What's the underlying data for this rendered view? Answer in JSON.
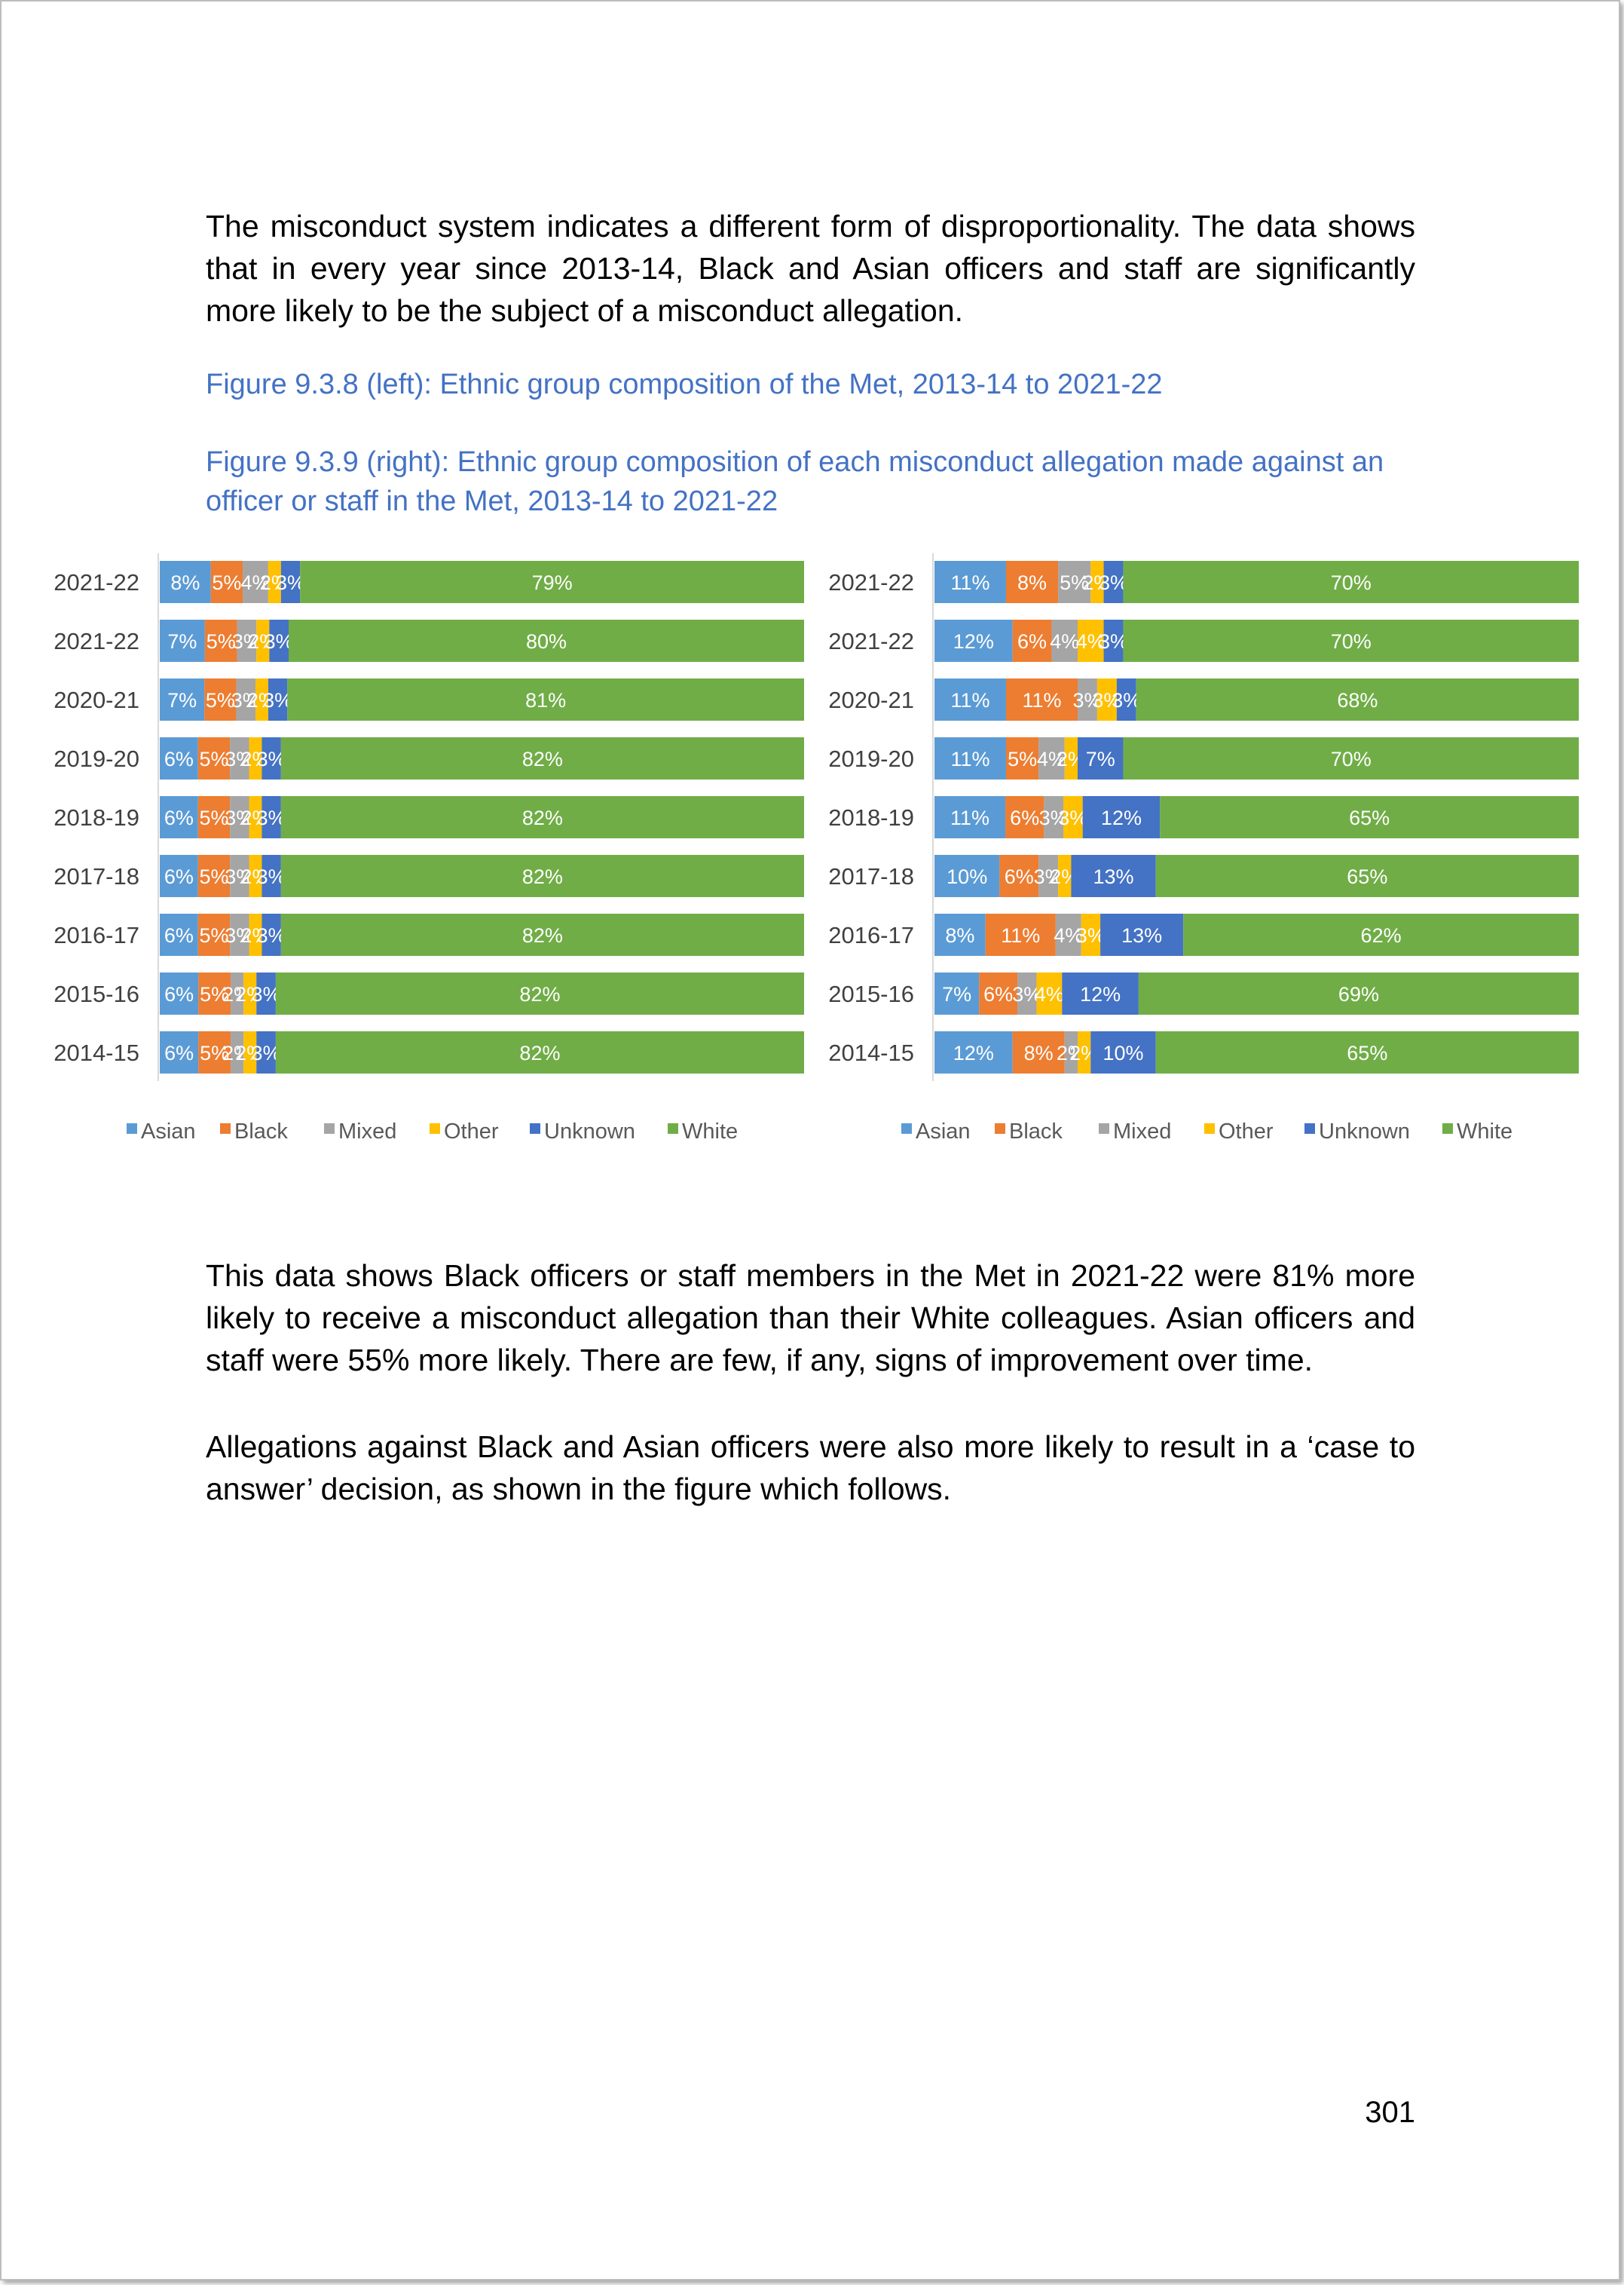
{
  "text": {
    "para1": "The misconduct system indicates a different form of disproportionality. The data shows that in every year since 2013-14, Black and Asian officers and staff are significantly more likely to be the subject of a misconduct allegation.",
    "caption_left": "Figure 9.3.8 (left): Ethnic group composition of the Met, 2013-14 to 2021-22",
    "caption_right": "Figure 9.3.9 (right): Ethnic group composition of each misconduct allegation made against an officer or staff in the Met, 2013-14 to 2021-22",
    "para2": "This data shows Black officers or staff members in the Met in 2021-22 were 81% more likely to receive a misconduct allegation than their White colleagues. Asian officers and staff were 55% more likely. There are few, if any, signs of improvement over time.",
    "para3": "Allegations against Black and Asian officers were also more likely to result in a ‘case to answer’ decision, as shown in the figure which follows.",
    "page_number": "301"
  },
  "chart_data": [
    {
      "type": "bar",
      "orientation": "horizontal",
      "stacked": "percent",
      "categories": [
        "2021-22",
        "2021-22",
        "2020-21",
        "2019-20",
        "2018-19",
        "2017-18",
        "2016-17",
        "2015-16",
        "2014-15"
      ],
      "series": [
        {
          "name": "Asian",
          "color": "#5b9bd5",
          "values": [
            8,
            7,
            7,
            6,
            6,
            6,
            6,
            6,
            6
          ]
        },
        {
          "name": "Black",
          "color": "#ed7d31",
          "values": [
            5,
            5,
            5,
            5,
            5,
            5,
            5,
            5,
            5
          ]
        },
        {
          "name": "Mixed",
          "color": "#a5a5a5",
          "values": [
            4,
            3,
            3,
            3,
            3,
            3,
            3,
            2,
            2
          ]
        },
        {
          "name": "Other",
          "color": "#ffc000",
          "values": [
            2,
            2,
            2,
            2,
            2,
            2,
            2,
            2,
            2
          ]
        },
        {
          "name": "Unknown",
          "color": "#4472c4",
          "values": [
            3,
            3,
            3,
            3,
            3,
            3,
            3,
            3,
            3
          ]
        },
        {
          "name": "White",
          "color": "#70ad47",
          "values": [
            79,
            80,
            81,
            82,
            82,
            82,
            82,
            82,
            82
          ]
        }
      ],
      "legend": "bottom",
      "grid": false
    },
    {
      "type": "bar",
      "orientation": "horizontal",
      "stacked": "percent",
      "categories": [
        "2021-22",
        "2021-22",
        "2020-21",
        "2019-20",
        "2018-19",
        "2017-18",
        "2016-17",
        "2015-16",
        "2014-15"
      ],
      "series": [
        {
          "name": "Asian",
          "color": "#5b9bd5",
          "values": [
            11,
            12,
            11,
            11,
            11,
            10,
            8,
            7,
            12
          ]
        },
        {
          "name": "Black",
          "color": "#ed7d31",
          "values": [
            8,
            6,
            11,
            5,
            6,
            6,
            11,
            6,
            8
          ]
        },
        {
          "name": "Mixed",
          "color": "#a5a5a5",
          "values": [
            5,
            4,
            3,
            4,
            3,
            3,
            4,
            3,
            2
          ]
        },
        {
          "name": "Other",
          "color": "#ffc000",
          "values": [
            2,
            4,
            3,
            2,
            3,
            2,
            3,
            4,
            2
          ]
        },
        {
          "name": "Unknown",
          "color": "#4472c4",
          "values": [
            3,
            3,
            3,
            7,
            12,
            13,
            13,
            12,
            10
          ]
        },
        {
          "name": "White",
          "color": "#70ad47",
          "values": [
            70,
            70,
            68,
            70,
            65,
            65,
            62,
            69,
            65
          ]
        }
      ],
      "legend": "bottom",
      "grid": false
    }
  ]
}
